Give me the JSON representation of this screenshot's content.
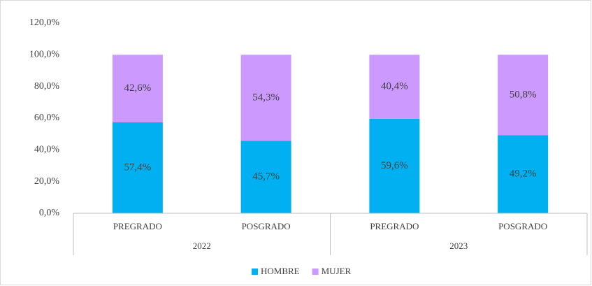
{
  "chart_data": {
    "type": "stacked_bar",
    "categories": [
      "PREGRADO",
      "POSGRADO",
      "PREGRADO",
      "POSGRADO"
    ],
    "groups": [
      {
        "label": "2022",
        "size": 2
      },
      {
        "label": "2023",
        "size": 2
      }
    ],
    "series": [
      {
        "name": "HOMBRE",
        "color": "#00b0f0",
        "values": [
          57.4,
          45.7,
          59.6,
          49.2
        ],
        "value_labels": [
          "57,4%",
          "45,7%",
          "59,6%",
          "49,2%"
        ]
      },
      {
        "name": "MUJER",
        "color": "#cc99ff",
        "values": [
          42.6,
          54.3,
          40.4,
          50.8
        ],
        "value_labels": [
          "42,6%",
          "54,3%",
          "40,4%",
          "50,8%"
        ]
      }
    ],
    "ylim": [
      0,
      120
    ],
    "yticks": [
      {
        "value": 0,
        "label": "0,0%"
      },
      {
        "value": 20,
        "label": "20,0%"
      },
      {
        "value": 40,
        "label": "40,0%"
      },
      {
        "value": 60,
        "label": "60,0%"
      },
      {
        "value": 80,
        "label": "80,0%"
      },
      {
        "value": 100,
        "label": "100,0%"
      },
      {
        "value": 120,
        "label": "120,0%"
      }
    ],
    "grid": false,
    "legend": "bottom"
  }
}
